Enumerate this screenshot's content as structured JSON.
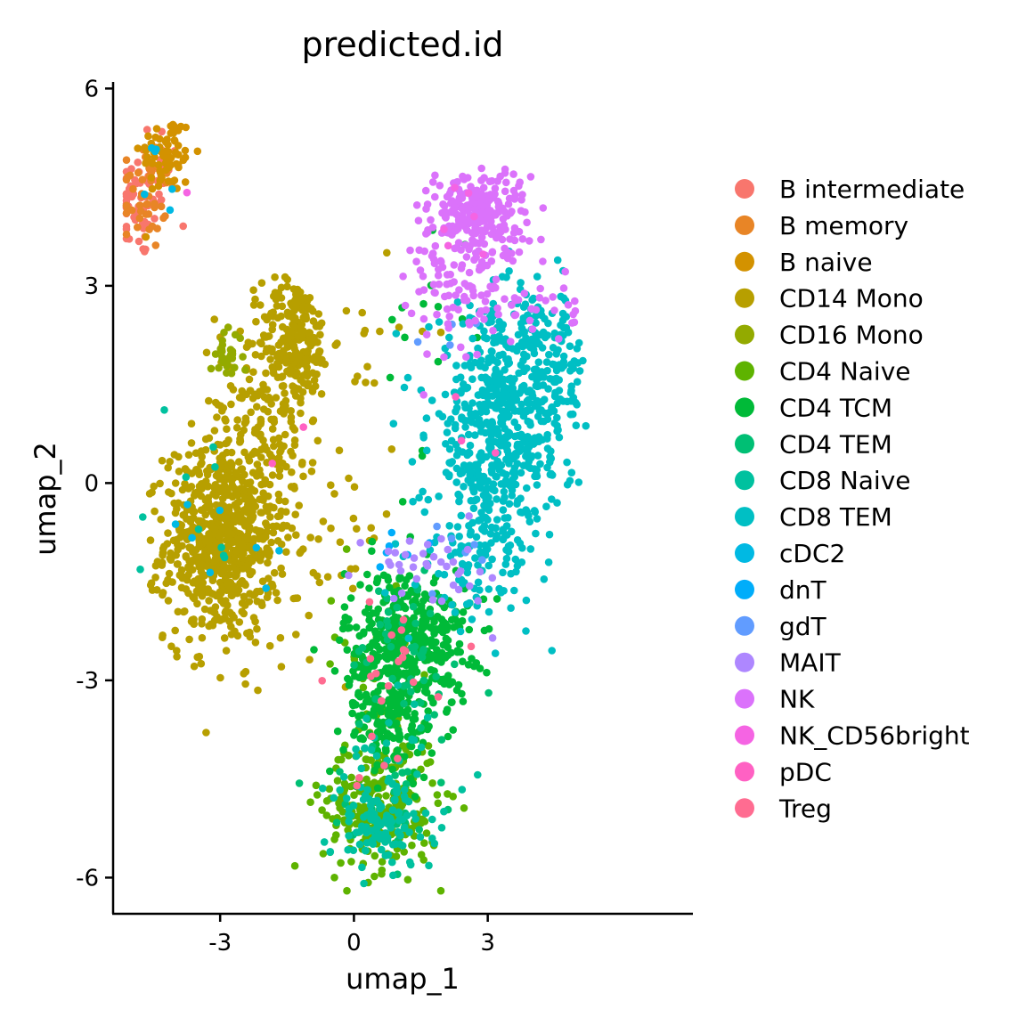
{
  "chart_data": {
    "type": "scatter",
    "title": "predicted.id",
    "xlabel": "umap_1",
    "ylabel": "umap_2",
    "xlim": [
      -5.4,
      7.6
    ],
    "ylim": [
      -6.55,
      6.1
    ],
    "x_ticks": [
      {
        "value": -3,
        "label": "-3"
      },
      {
        "value": 0,
        "label": "0"
      },
      {
        "value": 3,
        "label": "3"
      }
    ],
    "y_ticks": [
      {
        "value": 6,
        "label": "6"
      },
      {
        "value": 3,
        "label": "3"
      },
      {
        "value": 0,
        "label": "0"
      },
      {
        "value": -3,
        "label": "-3"
      },
      {
        "value": -6,
        "label": "-6"
      }
    ],
    "grid": false,
    "legend_position": "right",
    "series": [
      {
        "name": "B intermediate",
        "color": "#F8766D",
        "clusters": [
          {
            "cx": -4.8,
            "cy": 4.2,
            "sx": 0.35,
            "sy": 0.4,
            "n": 55
          },
          {
            "cx": -4.4,
            "cy": 4.9,
            "sx": 0.3,
            "sy": 0.35,
            "n": 15
          }
        ]
      },
      {
        "name": "B memory",
        "color": "#E88526",
        "clusters": [
          {
            "cx": -4.7,
            "cy": 4.4,
            "sx": 0.35,
            "sy": 0.45,
            "n": 45
          }
        ]
      },
      {
        "name": "B naive",
        "color": "#D39200",
        "clusters": [
          {
            "cx": -4.2,
            "cy": 5.0,
            "sx": 0.3,
            "sy": 0.3,
            "n": 70
          }
        ]
      },
      {
        "name": "CD14 Mono",
        "color": "#B79F00",
        "clusters": [
          {
            "cx": -3.0,
            "cy": -0.9,
            "sx": 0.62,
            "sy": 0.75,
            "n": 720
          },
          {
            "cx": -1.3,
            "cy": 2.2,
            "sx": 0.4,
            "sy": 0.45,
            "n": 200
          },
          {
            "cx": -1.9,
            "cy": 1.2,
            "sx": 0.6,
            "sy": 0.8,
            "n": 170
          },
          {
            "cx": -0.9,
            "cy": -0.7,
            "sx": 0.9,
            "sy": 0.9,
            "n": 60
          },
          {
            "cx": 0.6,
            "cy": 2.3,
            "sx": 0.6,
            "sy": 0.5,
            "n": 12
          }
        ]
      },
      {
        "name": "CD16 Mono",
        "color": "#93AA00",
        "clusters": [
          {
            "cx": -2.85,
            "cy": 1.95,
            "sx": 0.18,
            "sy": 0.18,
            "n": 30
          }
        ]
      },
      {
        "name": "CD4 Naive",
        "color": "#5EB300",
        "clusters": [
          {
            "cx": 0.6,
            "cy": -4.9,
            "sx": 0.65,
            "sy": 0.5,
            "n": 260
          },
          {
            "cx": 0.3,
            "cy": -2.9,
            "sx": 0.5,
            "sy": 0.8,
            "n": 25
          }
        ]
      },
      {
        "name": "CD4 TCM",
        "color": "#00BA38",
        "clusters": [
          {
            "cx": 1.2,
            "cy": -2.4,
            "sx": 0.7,
            "sy": 0.55,
            "n": 420
          },
          {
            "cx": 0.8,
            "cy": -3.6,
            "sx": 0.5,
            "sy": 0.45,
            "n": 140
          },
          {
            "cx": 1.7,
            "cy": 2.2,
            "sx": 0.5,
            "sy": 1.2,
            "n": 15
          }
        ]
      },
      {
        "name": "CD4 TEM",
        "color": "#00BF74",
        "clusters": [
          {
            "cx": 1.2,
            "cy": -2.6,
            "sx": 0.7,
            "sy": 0.7,
            "n": 45
          },
          {
            "cx": 0.7,
            "cy": -4.8,
            "sx": 0.6,
            "sy": 0.5,
            "n": 25
          }
        ]
      },
      {
        "name": "CD8 Naive",
        "color": "#00C19F",
        "clusters": [
          {
            "cx": 0.6,
            "cy": -5.2,
            "sx": 0.6,
            "sy": 0.35,
            "n": 120
          },
          {
            "cx": 0.9,
            "cy": -4.0,
            "sx": 0.6,
            "sy": 0.5,
            "n": 25
          },
          {
            "cx": -3.0,
            "cy": -0.8,
            "sx": 0.8,
            "sy": 0.8,
            "n": 10
          }
        ]
      },
      {
        "name": "CD8 TEM",
        "color": "#00BFC4",
        "clusters": [
          {
            "cx": 3.2,
            "cy": 0.7,
            "sx": 0.75,
            "sy": 0.95,
            "n": 560
          },
          {
            "cx": 4.2,
            "cy": 1.7,
            "sx": 0.55,
            "sy": 0.6,
            "n": 160
          },
          {
            "cx": 2.7,
            "cy": -1.2,
            "sx": 0.6,
            "sy": 0.5,
            "n": 70
          }
        ]
      },
      {
        "name": "cDC2",
        "color": "#00B9E3",
        "clusters": [
          {
            "cx": -4.2,
            "cy": 4.5,
            "sx": 0.4,
            "sy": 0.5,
            "n": 6
          },
          {
            "cx": -3.3,
            "cy": -0.8,
            "sx": 0.7,
            "sy": 0.6,
            "n": 8
          }
        ]
      },
      {
        "name": "dnT",
        "color": "#00ADFA",
        "clusters": [
          {
            "cx": 1.3,
            "cy": -1.3,
            "sx": 0.4,
            "sy": 0.3,
            "n": 6
          }
        ]
      },
      {
        "name": "gdT",
        "color": "#619CFF",
        "clusters": [
          {
            "cx": 2.0,
            "cy": 2.4,
            "sx": 0.4,
            "sy": 0.3,
            "n": 4
          },
          {
            "cx": 2.4,
            "cy": -1.2,
            "sx": 0.4,
            "sy": 0.3,
            "n": 6
          }
        ]
      },
      {
        "name": "MAIT",
        "color": "#AE87FF",
        "clusters": [
          {
            "cx": 1.4,
            "cy": -1.2,
            "sx": 0.55,
            "sy": 0.25,
            "n": 30
          },
          {
            "cx": 2.7,
            "cy": -1.3,
            "sx": 0.4,
            "sy": 0.3,
            "n": 8
          }
        ]
      },
      {
        "name": "NK",
        "color": "#DB72FB",
        "clusters": [
          {
            "cx": 2.8,
            "cy": 4.1,
            "sx": 0.55,
            "sy": 0.35,
            "n": 230
          },
          {
            "cx": 2.2,
            "cy": 3.0,
            "sx": 0.45,
            "sy": 0.6,
            "n": 80
          },
          {
            "cx": 3.8,
            "cy": 2.7,
            "sx": 0.6,
            "sy": 0.3,
            "n": 40
          }
        ]
      },
      {
        "name": "NK_CD56bright",
        "color": "#F564E3",
        "clusters": [
          {
            "cx": 2.5,
            "cy": 4.2,
            "sx": 0.4,
            "sy": 0.4,
            "n": 6
          },
          {
            "cx": -3.6,
            "cy": 4.6,
            "sx": 0.1,
            "sy": 0.1,
            "n": 1
          }
        ]
      },
      {
        "name": "pDC",
        "color": "#FF61C3",
        "clusters": [
          {
            "cx": 2.2,
            "cy": 0.7,
            "sx": 0.5,
            "sy": 0.7,
            "n": 3
          },
          {
            "cx": -1.6,
            "cy": 0.4,
            "sx": 0.3,
            "sy": 0.3,
            "n": 2
          }
        ]
      },
      {
        "name": "Treg",
        "color": "#FF6C91",
        "clusters": [
          {
            "cx": 0.8,
            "cy": -2.7,
            "sx": 0.6,
            "sy": 0.6,
            "n": 18
          },
          {
            "cx": 0.7,
            "cy": -4.6,
            "sx": 0.4,
            "sy": 0.4,
            "n": 4
          }
        ]
      }
    ]
  }
}
